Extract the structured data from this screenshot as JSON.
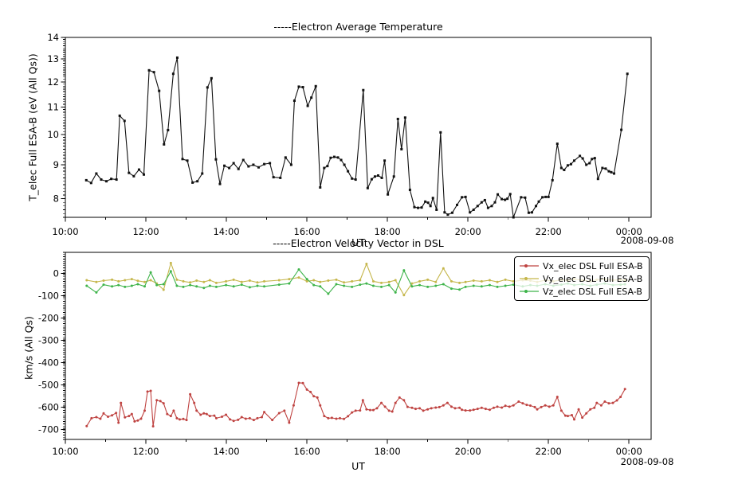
{
  "figure": {
    "background": "#ffffff",
    "frame_color": "#000000"
  },
  "top_panel": {
    "title": "-----Electron Average Temperature",
    "ylabel": "T_elec Full ESA-B (eV (All Qs))",
    "xlabel": "UT",
    "date_label": "2008-09-08"
  },
  "bottom_panel": {
    "title": "-----Electron Velocity Vector in DSL",
    "ylabel": "km/s (All Qs)",
    "xlabel": "UT",
    "date_label": "2008-09-08"
  },
  "legend": {
    "position": "upper right",
    "items": [
      {
        "label": "Vx_elec DSL Full ESA-B",
        "color": "#bf4341"
      },
      {
        "label": "Vy_elec DSL Full ESA-B",
        "color": "#c5b64b"
      },
      {
        "label": "Vz_elec DSL Full ESA-B",
        "color": "#3eb44a"
      }
    ]
  },
  "chart_data": [
    {
      "type": "line",
      "title": "-----Electron Average Temperature",
      "xlabel": "UT",
      "ylabel": "T_elec Full ESA-B (eV (All Qs))",
      "yscale": "log",
      "ylim": [
        7.5,
        14
      ],
      "yticks": [
        8,
        9,
        10,
        11,
        12,
        13,
        14
      ],
      "y_minor_step": 0.1,
      "xlim": [
        10,
        24.55
      ],
      "xticks": [
        10,
        12,
        14,
        16,
        18,
        20,
        22,
        24
      ],
      "xtick_labels": [
        "10:00",
        "12:00",
        "14:00",
        "16:00",
        "18:00",
        "20:00",
        "22:00",
        "00:00"
      ],
      "x_minor_step": 1,
      "grid": false,
      "date": "2008-09-08",
      "series": [
        {
          "name": "T_elec Full ESA-B",
          "color": "#111111",
          "marker": "square",
          "t": [
            10.52,
            10.64,
            10.77,
            10.89,
            11.02,
            11.14,
            11.27,
            11.35,
            11.47,
            11.58,
            11.7,
            11.83,
            11.95,
            12.08,
            12.2,
            12.33,
            12.45,
            12.55,
            12.68,
            12.78,
            12.91,
            13.03,
            13.16,
            13.28,
            13.4,
            13.53,
            13.63,
            13.74,
            13.84,
            13.95,
            14.07,
            14.18,
            14.3,
            14.42,
            14.55,
            14.67,
            14.8,
            14.94,
            15.08,
            15.17,
            15.34,
            15.47,
            15.61,
            15.69,
            15.8,
            15.9,
            16.02,
            16.11,
            16.22,
            16.33,
            16.43,
            16.51,
            16.59,
            16.68,
            16.77,
            16.85,
            16.93,
            17.02,
            17.12,
            17.21,
            17.4,
            17.51,
            17.61,
            17.69,
            17.77,
            17.86,
            17.93,
            18.01,
            18.16,
            18.26,
            18.35,
            18.44,
            18.56,
            18.67,
            18.76,
            18.85,
            18.94,
            19.01,
            19.07,
            19.13,
            19.22,
            19.32,
            19.42,
            19.5,
            19.61,
            19.73,
            19.85,
            19.94,
            20.05,
            20.14,
            20.24,
            20.34,
            20.42,
            20.5,
            20.59,
            20.67,
            20.74,
            20.84,
            20.92,
            20.98,
            21.05,
            21.13,
            21.32,
            21.42,
            21.51,
            21.59,
            21.69,
            21.76,
            21.85,
            21.93,
            22.0,
            22.1,
            22.22,
            22.32,
            22.39,
            22.48,
            22.56,
            22.64,
            22.78,
            22.85,
            22.94,
            23.02,
            23.08,
            23.15,
            23.23,
            23.34,
            23.42,
            23.5,
            23.56,
            23.63,
            23.81,
            23.96
          ],
          "v": [
            8.53,
            8.45,
            8.73,
            8.55,
            8.5,
            8.57,
            8.55,
            10.67,
            10.48,
            8.75,
            8.65,
            8.85,
            8.7,
            12.49,
            12.41,
            11.63,
            9.66,
            10.15,
            12.34,
            13.05,
            9.18,
            9.13,
            8.46,
            8.5,
            8.73,
            11.77,
            12.15,
            9.17,
            8.42,
            8.97,
            8.9,
            9.05,
            8.87,
            9.15,
            8.95,
            9.0,
            8.92,
            9.02,
            9.05,
            8.62,
            8.6,
            9.23,
            9.0,
            11.24,
            11.8,
            11.78,
            11.04,
            11.36,
            11.82,
            8.32,
            8.9,
            8.96,
            9.22,
            9.25,
            9.23,
            9.15,
            9.0,
            8.8,
            8.58,
            8.55,
            11.66,
            8.3,
            8.56,
            8.64,
            8.67,
            8.6,
            9.13,
            8.12,
            8.64,
            10.55,
            9.5,
            10.6,
            8.25,
            7.77,
            7.75,
            7.76,
            7.92,
            7.89,
            7.8,
            8.02,
            7.7,
            10.07,
            7.63,
            7.57,
            7.62,
            7.83,
            8.04,
            8.05,
            7.63,
            7.7,
            7.8,
            7.9,
            7.96,
            7.75,
            7.8,
            7.9,
            8.12,
            7.99,
            7.97,
            8.0,
            8.13,
            7.5,
            8.04,
            8.03,
            7.62,
            7.63,
            7.8,
            7.92,
            8.04,
            8.05,
            8.05,
            8.53,
            9.68,
            8.9,
            8.84,
            8.98,
            9.02,
            9.13,
            9.28,
            9.2,
            9.0,
            9.05,
            9.18,
            9.21,
            8.57,
            8.9,
            8.88,
            8.8,
            8.77,
            8.73,
            10.16,
            12.34
          ]
        }
      ]
    },
    {
      "type": "line",
      "title": "-----Electron Velocity Vector in DSL",
      "xlabel": "UT",
      "ylabel": "km/s (All Qs)",
      "yscale": "linear",
      "ylim": [
        -745,
        95
      ],
      "yticks": [
        0,
        -100,
        -200,
        -300,
        -400,
        -500,
        -600,
        -700
      ],
      "y_minor_step": 10,
      "xlim": [
        10,
        24.55
      ],
      "xticks": [
        10,
        12,
        14,
        16,
        18,
        20,
        22,
        24
      ],
      "xtick_labels": [
        "10:00",
        "12:00",
        "14:00",
        "16:00",
        "18:00",
        "20:00",
        "22:00",
        "00:00"
      ],
      "x_minor_step": 1,
      "grid": false,
      "date": "2008-09-08",
      "legend_position": "upper right",
      "series": [
        {
          "name": "Vx_elec DSL Full ESA-B",
          "color": "#bf4341",
          "marker": "circle",
          "t": [
            10.53,
            10.65,
            10.77,
            10.87,
            10.95,
            11.06,
            11.16,
            11.26,
            11.32,
            11.38,
            11.48,
            11.58,
            11.65,
            11.72,
            11.8,
            11.88,
            11.97,
            12.04,
            12.12,
            12.18,
            12.27,
            12.36,
            12.44,
            12.53,
            12.62,
            12.69,
            12.77,
            12.84,
            12.93,
            13.01,
            13.1,
            13.2,
            13.26,
            13.36,
            13.44,
            13.51,
            13.59,
            13.7,
            13.75,
            13.89,
            13.99,
            14.09,
            14.18,
            14.29,
            14.38,
            14.48,
            14.58,
            14.68,
            14.77,
            14.88,
            14.94,
            15.14,
            15.31,
            15.44,
            15.56,
            15.67,
            15.8,
            15.9,
            16.0,
            16.09,
            16.17,
            16.26,
            16.33,
            16.43,
            16.53,
            16.62,
            16.73,
            16.82,
            16.92,
            17.02,
            17.12,
            17.21,
            17.32,
            17.39,
            17.48,
            17.57,
            17.65,
            17.74,
            17.85,
            17.94,
            18.04,
            18.12,
            18.2,
            18.3,
            18.41,
            18.5,
            18.61,
            18.7,
            18.8,
            18.89,
            19.0,
            19.09,
            19.2,
            19.29,
            19.39,
            19.49,
            19.59,
            19.68,
            19.79,
            19.85,
            19.94,
            20.05,
            20.14,
            20.24,
            20.34,
            20.44,
            20.54,
            20.64,
            20.73,
            20.84,
            20.93,
            21.03,
            21.13,
            21.26,
            21.36,
            21.46,
            21.55,
            21.66,
            21.72,
            21.82,
            21.92,
            22.02,
            22.12,
            22.22,
            22.32,
            22.42,
            22.48,
            22.58,
            22.64,
            22.75,
            22.84,
            22.94,
            23.04,
            23.14,
            23.2,
            23.31,
            23.4,
            23.5,
            23.6,
            23.7,
            23.79,
            23.9
          ],
          "v": [
            -685,
            -650,
            -645,
            -652,
            -628,
            -643,
            -637,
            -626,
            -670,
            -581,
            -646,
            -640,
            -631,
            -664,
            -660,
            -652,
            -616,
            -530,
            -527,
            -686,
            -569,
            -573,
            -583,
            -631,
            -640,
            -616,
            -650,
            -655,
            -653,
            -658,
            -542,
            -581,
            -616,
            -634,
            -628,
            -631,
            -640,
            -638,
            -650,
            -643,
            -634,
            -655,
            -662,
            -657,
            -645,
            -652,
            -650,
            -658,
            -650,
            -645,
            -622,
            -658,
            -627,
            -616,
            -670,
            -592,
            -491,
            -492,
            -521,
            -532,
            -551,
            -557,
            -592,
            -640,
            -650,
            -648,
            -652,
            -650,
            -653,
            -641,
            -624,
            -616,
            -615,
            -569,
            -610,
            -613,
            -613,
            -605,
            -581,
            -598,
            -616,
            -620,
            -581,
            -557,
            -569,
            -599,
            -603,
            -608,
            -605,
            -616,
            -610,
            -605,
            -602,
            -600,
            -592,
            -581,
            -598,
            -605,
            -603,
            -612,
            -615,
            -615,
            -612,
            -608,
            -603,
            -608,
            -612,
            -603,
            -598,
            -602,
            -594,
            -598,
            -592,
            -575,
            -583,
            -590,
            -593,
            -600,
            -610,
            -600,
            -592,
            -598,
            -592,
            -554,
            -616,
            -638,
            -640,
            -636,
            -655,
            -610,
            -647,
            -628,
            -610,
            -603,
            -581,
            -592,
            -575,
            -583,
            -581,
            -570,
            -554,
            -519
          ]
        },
        {
          "name": "Vy_elec DSL Full ESA-B",
          "color": "#c5b64b",
          "marker": "circle",
          "t": [
            10.53,
            10.77,
            10.95,
            11.16,
            11.32,
            11.48,
            11.65,
            11.8,
            11.97,
            12.12,
            12.27,
            12.44,
            12.62,
            12.77,
            12.93,
            13.1,
            13.26,
            13.44,
            13.59,
            13.75,
            13.99,
            14.18,
            14.38,
            14.58,
            14.77,
            14.94,
            15.31,
            15.56,
            15.8,
            16.0,
            16.17,
            16.33,
            16.53,
            16.73,
            16.92,
            17.12,
            17.32,
            17.48,
            17.65,
            17.85,
            18.04,
            18.2,
            18.41,
            18.61,
            18.8,
            19.0,
            19.2,
            19.39,
            19.59,
            19.79,
            19.94,
            20.14,
            20.34,
            20.54,
            20.73,
            20.93,
            21.13,
            21.36,
            21.55,
            21.72,
            21.92,
            22.12,
            22.32,
            22.48,
            22.64,
            22.84,
            23.04,
            23.2,
            23.4,
            23.6,
            23.79,
            23.9
          ],
          "v": [
            -30,
            -38,
            -32,
            -28,
            -35,
            -30,
            -25,
            -33,
            -38,
            -30,
            -45,
            -73,
            47,
            -28,
            -35,
            -40,
            -32,
            -38,
            -30,
            -42,
            -35,
            -28,
            -38,
            -32,
            -40,
            -35,
            -30,
            -25,
            -18,
            -35,
            -30,
            -38,
            -32,
            -28,
            -40,
            -35,
            -30,
            43,
            -35,
            -42,
            -38,
            -30,
            -97,
            -45,
            -35,
            -28,
            -38,
            23,
            -35,
            -42,
            -38,
            -32,
            -35,
            -30,
            -38,
            -28,
            -35,
            -30,
            -32,
            -38,
            -30,
            -35,
            -28,
            -32,
            -25,
            -30,
            -35,
            -28,
            -25,
            -30,
            -28,
            -30
          ]
        },
        {
          "name": "Vz_elec DSL Full ESA-B",
          "color": "#3eb44a",
          "marker": "circle",
          "t": [
            10.53,
            10.77,
            10.95,
            11.16,
            11.32,
            11.48,
            11.65,
            11.8,
            11.97,
            12.12,
            12.27,
            12.44,
            12.62,
            12.77,
            12.93,
            13.1,
            13.26,
            13.44,
            13.59,
            13.75,
            13.99,
            14.18,
            14.38,
            14.58,
            14.77,
            14.94,
            15.31,
            15.56,
            15.8,
            16.0,
            16.17,
            16.33,
            16.53,
            16.73,
            16.92,
            17.12,
            17.32,
            17.48,
            17.65,
            17.85,
            18.04,
            18.2,
            18.41,
            18.61,
            18.8,
            19.0,
            19.2,
            19.39,
            19.59,
            19.79,
            19.94,
            20.14,
            20.34,
            20.54,
            20.73,
            20.93,
            21.13,
            21.36,
            21.55,
            21.72,
            21.92,
            22.12,
            22.32,
            22.48,
            22.64,
            22.84,
            23.04,
            23.2,
            23.4,
            23.6,
            23.79,
            23.9
          ],
          "v": [
            -55,
            -85,
            -50,
            -58,
            -52,
            -60,
            -55,
            -48,
            -58,
            5,
            -52,
            -48,
            10,
            -55,
            -60,
            -52,
            -58,
            -65,
            -55,
            -60,
            -52,
            -58,
            -50,
            -62,
            -55,
            -58,
            -50,
            -45,
            18,
            -25,
            -52,
            -58,
            -91,
            -48,
            -55,
            -60,
            -50,
            -45,
            -55,
            -60,
            -52,
            -85,
            14,
            -58,
            -52,
            -60,
            -55,
            -48,
            -68,
            -72,
            -60,
            -55,
            -58,
            -52,
            -60,
            -55,
            -50,
            -58,
            -52,
            -55,
            -48,
            -55,
            -50,
            -45,
            -52,
            -48,
            -55,
            -50,
            -45,
            -52,
            -50,
            -48
          ]
        }
      ]
    }
  ]
}
